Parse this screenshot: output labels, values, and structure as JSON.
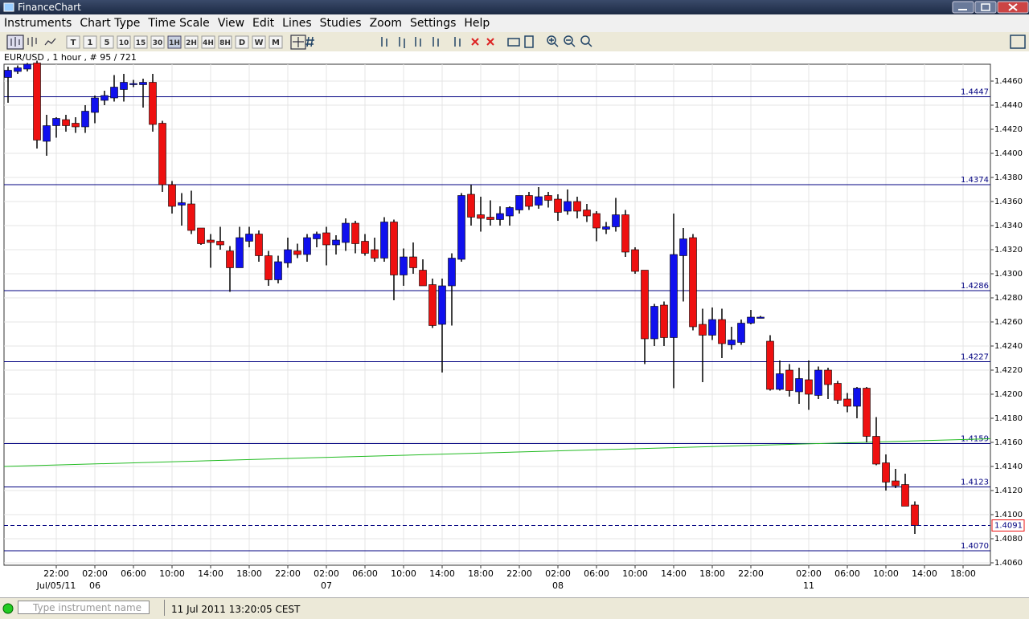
{
  "window": {
    "title": "FinanceChart"
  },
  "menu": [
    "Instruments",
    "Chart Type",
    "Time Scale",
    "View",
    "Edit",
    "Lines",
    "Studies",
    "Zoom",
    "Settings",
    "Help"
  ],
  "toolbar": {
    "timeframes": [
      "T",
      "1",
      "5",
      "10",
      "15",
      "30",
      "1H",
      "2H",
      "4H",
      "8H",
      "D",
      "W",
      "M"
    ],
    "selected": "1H"
  },
  "status": {
    "placeholder": "Type instrument name",
    "datetime": "11 Jul 2011 13:20:05 CEST"
  },
  "chart_data": {
    "type": "candlestick",
    "title": "EUR/USD , 1 hour , # 95 / 721",
    "categories": [
      null,
      null,
      null,
      null,
      null,
      "22:00",
      null,
      null,
      null,
      "02:00",
      null,
      null,
      null,
      "06:00",
      null,
      null,
      null,
      "10:00",
      null,
      null,
      null,
      "14:00",
      null,
      null,
      null,
      "18:00",
      null,
      null,
      null,
      "22:00",
      null,
      null,
      null,
      "02:00",
      null,
      null,
      null,
      "06:00",
      null,
      null,
      null,
      "10:00",
      null,
      null,
      null,
      "14:00",
      null,
      null,
      null,
      "18:00",
      null,
      null,
      null,
      "22:00",
      null,
      null,
      null,
      "02:00",
      null,
      null,
      null,
      "06:00",
      null,
      null,
      null,
      "10:00",
      null,
      null,
      null,
      "14:00",
      null,
      null,
      null,
      "18:00",
      null,
      null,
      null,
      "22:00",
      null,
      null,
      null,
      null,
      null,
      "02:00",
      null,
      null,
      null,
      "06:00",
      null,
      null,
      null,
      "10:00",
      null,
      null,
      null,
      "14:00",
      null,
      null,
      null,
      "18:00"
    ],
    "dates": [
      null,
      null,
      null,
      null,
      null,
      "Jul/05/11",
      null,
      null,
      null,
      "06",
      null,
      null,
      null,
      null,
      null,
      null,
      null,
      null,
      null,
      null,
      null,
      null,
      null,
      null,
      null,
      null,
      null,
      null,
      null,
      null,
      null,
      null,
      null,
      "07",
      null,
      null,
      null,
      null,
      null,
      null,
      null,
      null,
      null,
      null,
      null,
      null,
      null,
      null,
      null,
      null,
      null,
      null,
      null,
      null,
      null,
      null,
      null,
      "08",
      null,
      null,
      null,
      null,
      null,
      null,
      null,
      null,
      null,
      null,
      null,
      null,
      null,
      null,
      null,
      null,
      null,
      null,
      null,
      null,
      null,
      null,
      null,
      null,
      null,
      "11",
      null,
      null,
      null,
      null,
      null,
      null,
      null,
      null,
      null,
      null,
      null,
      null,
      null,
      null,
      null,
      null
    ],
    "open": [
      1.4463,
      1.4468,
      1.447,
      1.4475,
      1.441,
      1.4423,
      1.4428,
      1.4425,
      1.4422,
      1.4434,
      1.4444,
      1.4446,
      1.4453,
      1.4458,
      1.4457,
      1.4459,
      1.4425,
      1.4374,
      1.4357,
      1.4358,
      1.4338,
      1.4328,
      1.4327,
      1.4319,
      1.4305,
      1.4327,
      1.4333,
      1.4315,
      1.4295,
      1.4309,
      1.4319,
      1.4316,
      1.4329,
      1.4334,
      1.4324,
      1.4326,
      1.4342,
      1.4327,
      1.432,
      1.4313,
      1.4343,
      1.4299,
      1.4314,
      1.4303,
      1.4291,
      1.4258,
      1.429,
      1.4312,
      1.4366,
      1.4349,
      1.4347,
      1.4345,
      1.4348,
      1.4353,
      1.4365,
      1.4357,
      1.4365,
      1.4362,
      1.4352,
      1.436,
      1.4353,
      1.435,
      1.4337,
      1.4339,
      1.4349,
      1.432,
      1.4303,
      1.4246,
      1.4274,
      1.4247,
      1.4315,
      1.433,
      1.4258,
      1.4249,
      1.4262,
      1.4241,
      1.4243,
      1.4259,
      1.4264,
      1.4244,
      1.4204,
      1.422,
      1.4202,
      1.4212,
      1.4199,
      1.422,
      1.4209,
      1.4196,
      1.419,
      1.4205,
      1.4165,
      1.4143,
      1.4128,
      1.4125,
      1.4108,
      null,
      null,
      null,
      null,
      null
    ],
    "high": [
      1.4472,
      1.4473,
      1.4475,
      1.4477,
      1.4432,
      1.443,
      1.4432,
      1.443,
      1.444,
      1.4448,
      1.4452,
      1.4465,
      1.4466,
      1.4461,
      1.4462,
      1.4466,
      1.4427,
      1.4377,
      1.4367,
      1.4369,
      1.4338,
      1.4333,
      1.4339,
      1.4323,
      1.4339,
      1.4339,
      1.4336,
      1.4319,
      1.4315,
      1.433,
      1.4325,
      1.4333,
      1.4335,
      1.4339,
      1.4332,
      1.4346,
      1.4344,
      1.4333,
      1.433,
      1.4347,
      1.4345,
      1.4321,
      1.4326,
      1.4312,
      1.4296,
      1.4296,
      1.4317,
      1.4367,
      1.4374,
      1.4364,
      1.4361,
      1.4356,
      1.4356,
      1.4365,
      1.4368,
      1.4372,
      1.4368,
      1.4366,
      1.437,
      1.4364,
      1.4358,
      1.4352,
      1.4343,
      1.4363,
      1.4353,
      1.4322,
      1.4303,
      1.4275,
      1.4277,
      1.435,
      1.4338,
      1.4333,
      1.4271,
      1.4272,
      1.4271,
      1.4256,
      1.4262,
      1.427,
      1.4265,
      1.4249,
      1.4228,
      1.4225,
      1.4222,
      1.4228,
      1.4223,
      1.4222,
      1.4211,
      1.4201,
      1.4206,
      1.4206,
      1.4181,
      1.415,
      1.4138,
      1.4134,
      1.4111,
      null,
      null,
      null,
      null,
      null
    ],
    "low": [
      1.4442,
      1.4466,
      1.4468,
      1.4404,
      1.4398,
      1.4413,
      1.4418,
      1.4417,
      1.4417,
      1.4425,
      1.444,
      1.4443,
      1.4443,
      1.4455,
      1.4438,
      1.4418,
      1.4368,
      1.435,
      1.434,
      1.4333,
      1.4324,
      1.4305,
      1.432,
      1.4285,
      1.4305,
      1.4322,
      1.431,
      1.429,
      1.4292,
      1.4305,
      1.4313,
      1.431,
      1.4322,
      1.4307,
      1.4316,
      1.4319,
      1.4317,
      1.4315,
      1.431,
      1.431,
      1.4278,
      1.429,
      1.43,
      1.4291,
      1.4255,
      1.4218,
      1.4257,
      1.431,
      1.434,
      1.4335,
      1.434,
      1.434,
      1.434,
      1.435,
      1.4353,
      1.4354,
      1.4355,
      1.4344,
      1.4349,
      1.4346,
      1.4343,
      1.4327,
      1.4333,
      1.4335,
      1.4314,
      1.43,
      1.4225,
      1.424,
      1.424,
      1.4205,
      1.4277,
      1.4253,
      1.421,
      1.4245,
      1.423,
      1.4237,
      1.4241,
      1.4258,
      1.4263,
      1.4203,
      1.4203,
      1.4198,
      1.4192,
      1.4187,
      1.4196,
      1.4196,
      1.4192,
      1.4185,
      1.418,
      1.416,
      1.4141,
      1.412,
      1.4122,
      1.4107,
      1.4084,
      null,
      null,
      null,
      null,
      null
    ],
    "close": [
      1.4469,
      1.4471,
      1.4474,
      1.4411,
      1.4423,
      1.4429,
      1.4423,
      1.4422,
      1.4435,
      1.4446,
      1.4448,
      1.4455,
      1.4459,
      1.4458,
      1.4459,
      1.4424,
      1.4374,
      1.4356,
      1.4359,
      1.4336,
      1.4325,
      1.4326,
      1.4324,
      1.4305,
      1.433,
      1.4333,
      1.4315,
      1.4295,
      1.431,
      1.432,
      1.4316,
      1.433,
      1.4333,
      1.4324,
      1.4328,
      1.4342,
      1.4325,
      1.4317,
      1.4313,
      1.4343,
      1.4299,
      1.4314,
      1.4305,
      1.429,
      1.4257,
      1.429,
      1.4313,
      1.4365,
      1.4347,
      1.4346,
      1.4345,
      1.435,
      1.4355,
      1.4365,
      1.4356,
      1.4364,
      1.4361,
      1.4351,
      1.436,
      1.4352,
      1.4348,
      1.4338,
      1.4339,
      1.4349,
      1.4318,
      1.4302,
      1.4246,
      1.4273,
      1.4247,
      1.4316,
      1.4329,
      1.4256,
      1.4249,
      1.4262,
      1.4242,
      1.4245,
      1.4259,
      1.4264,
      1.4264,
      1.4204,
      1.4217,
      1.4203,
      1.4213,
      1.42,
      1.422,
      1.4208,
      1.4195,
      1.419,
      1.4205,
      1.4165,
      1.4142,
      1.4127,
      1.4124,
      1.4107,
      1.4091,
      null,
      null,
      null,
      null,
      null
    ],
    "up_color": "#1010ee",
    "down_color": "#ee1010",
    "ylim": [
      1.4058,
      1.4474
    ],
    "yticks": [
      {
        "value": 1.406,
        "label": "1.4060"
      },
      {
        "value": 1.408,
        "label": "1.4080"
      },
      {
        "value": 1.41,
        "label": "1.4100"
      },
      {
        "value": 1.412,
        "label": "1.4120"
      },
      {
        "value": 1.414,
        "label": "1.4140"
      },
      {
        "value": 1.416,
        "label": "1.4160"
      },
      {
        "value": 1.418,
        "label": "1.4180"
      },
      {
        "value": 1.42,
        "label": "1.4200"
      },
      {
        "value": 1.422,
        "label": "1.4220"
      },
      {
        "value": 1.424,
        "label": "1.4240"
      },
      {
        "value": 1.426,
        "label": "1.4260"
      },
      {
        "value": 1.428,
        "label": "1.4280"
      },
      {
        "value": 1.43,
        "label": "1.4300"
      },
      {
        "value": 1.432,
        "label": "1.4320"
      },
      {
        "value": 1.434,
        "label": "1.4340"
      },
      {
        "value": 1.436,
        "label": "1.4360"
      },
      {
        "value": 1.438,
        "label": "1.4380"
      },
      {
        "value": 1.44,
        "label": "1.4400"
      },
      {
        "value": 1.442,
        "label": "1.4420"
      },
      {
        "value": 1.444,
        "label": "1.4440"
      },
      {
        "value": 1.446,
        "label": "1.4460"
      }
    ],
    "grid": true,
    "levels": [
      1.4447,
      1.4374,
      1.4286,
      1.4227,
      1.4159,
      1.4123,
      {
        "value": 1.407,
        "label": "1.4070"
      }
    ],
    "level_color": "#000080",
    "trendline": {
      "values": [
        1.414,
        1.4163
      ],
      "color": "#22bb22"
    },
    "last_price": 1.4091
  }
}
